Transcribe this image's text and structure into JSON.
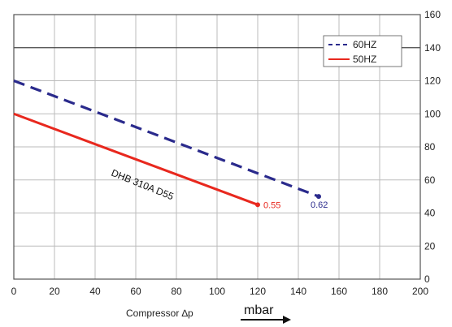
{
  "chart_data": {
    "type": "line",
    "xlabel": "Compressor ∆p",
    "x_unit": "mbar",
    "xlim": [
      0,
      200
    ],
    "ylim": [
      0,
      160
    ],
    "x_ticks": [
      0,
      20,
      40,
      60,
      80,
      100,
      120,
      140,
      160,
      180,
      200
    ],
    "y_ticks": [
      0,
      20,
      40,
      60,
      80,
      100,
      120,
      140,
      160
    ],
    "grid": true,
    "legend_position": "top-right",
    "annotation": "DHB 310A D55",
    "series": [
      {
        "name": "60HZ",
        "color": "#2a2a8c",
        "style": "dashed",
        "x": [
          0,
          150
        ],
        "y": [
          120,
          50
        ],
        "end_label": "0.62"
      },
      {
        "name": "50HZ",
        "color": "#e8281e",
        "style": "solid",
        "x": [
          0,
          120
        ],
        "y": [
          100,
          45
        ],
        "end_label": "0.55"
      }
    ]
  }
}
